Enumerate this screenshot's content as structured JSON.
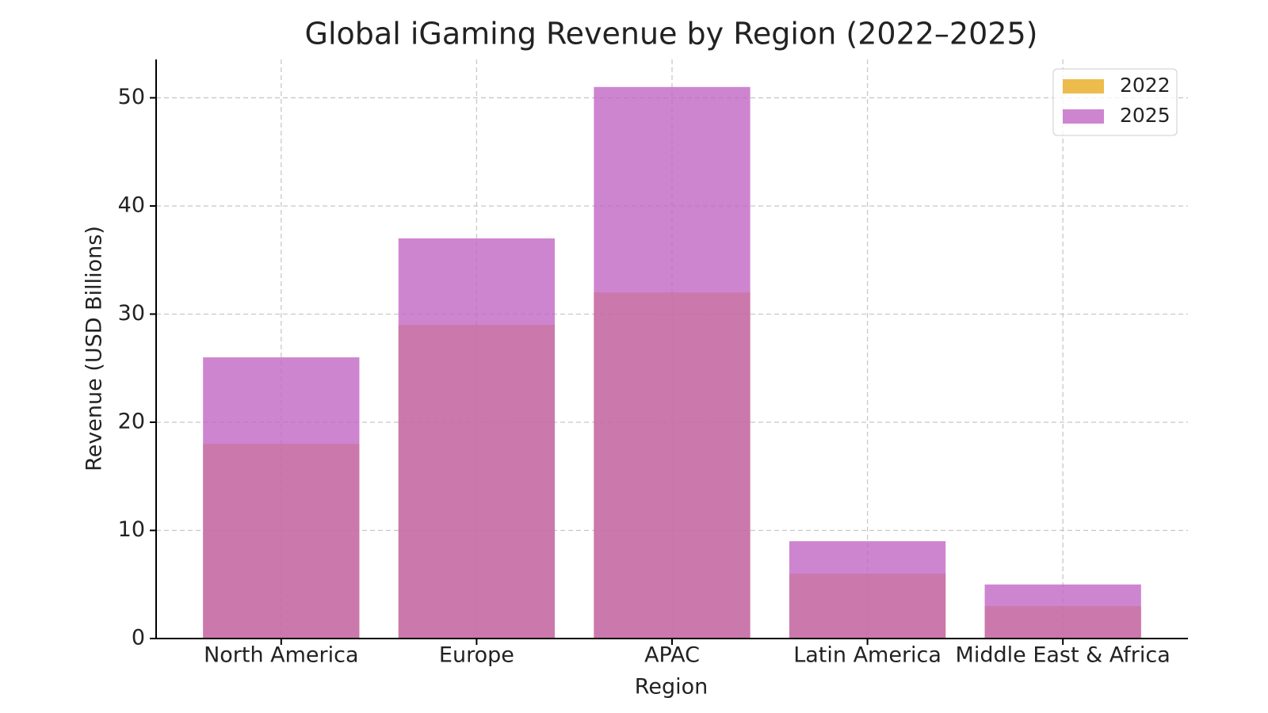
{
  "chart_data": {
    "type": "bar",
    "title": "Global iGaming Revenue by Region (2022–2025)",
    "x_label": "Region",
    "y_label": "Revenue (USD Billions)",
    "categories": [
      "North America",
      "Europe",
      "APAC",
      "Latin America",
      "Middle East & Africa"
    ],
    "series": [
      {
        "name": "2022",
        "color": "#e69f00",
        "values": [
          18,
          29,
          32,
          6,
          3
        ]
      },
      {
        "name": "2025",
        "color": "#c267c4",
        "values": [
          26,
          37,
          51,
          9,
          5
        ]
      }
    ],
    "ylim": [
      0,
      53.55
    ],
    "yticks": [
      0,
      10,
      20,
      30,
      40,
      50
    ],
    "grid": true,
    "legend": "upper right"
  }
}
